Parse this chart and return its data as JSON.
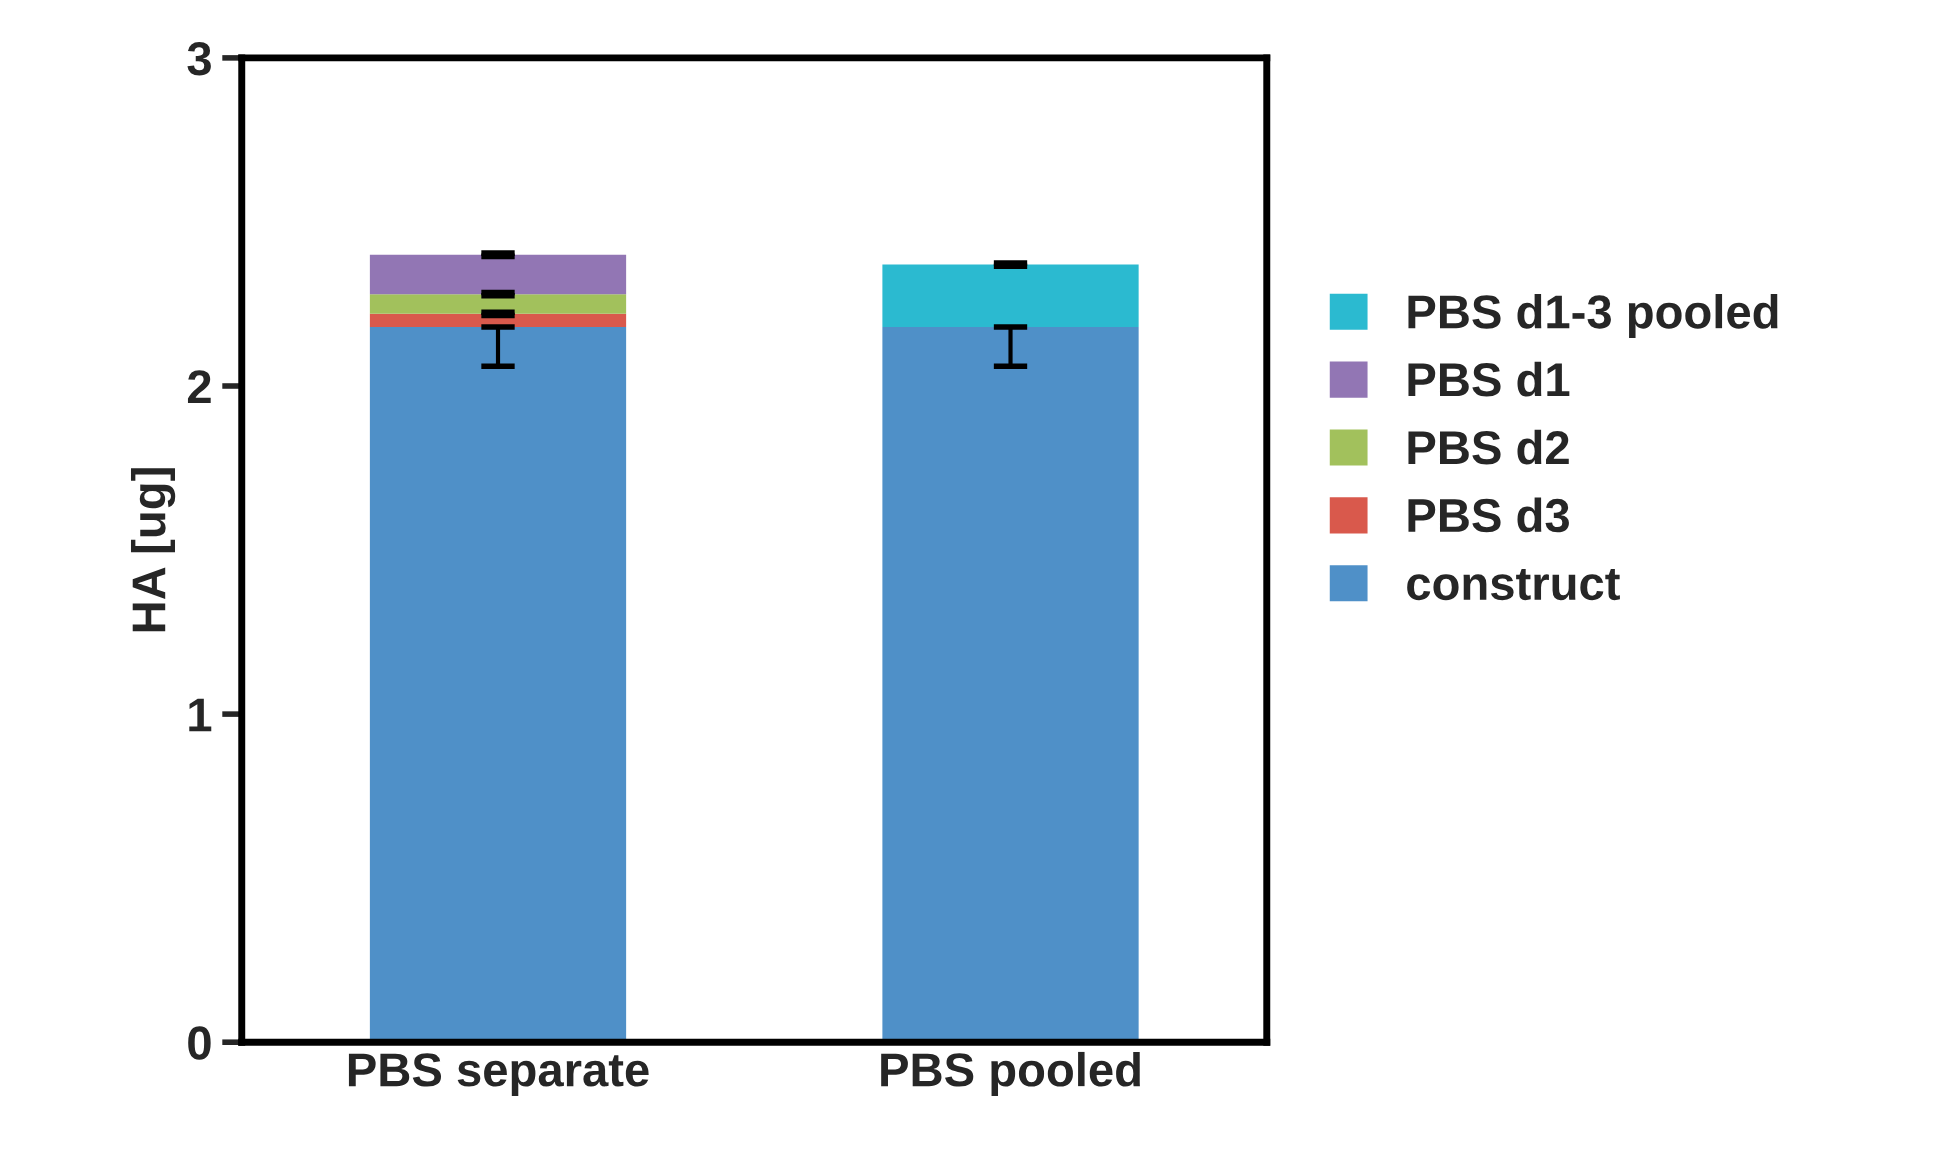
{
  "chart_data": {
    "type": "bar",
    "stacked": true,
    "ylabel": "HA [ug]",
    "categories": [
      "PBS separate",
      "PBS pooled"
    ],
    "series": [
      {
        "name": "construct",
        "color": "#4f90c8",
        "values": [
          2.18,
          2.18
        ],
        "errors": [
          [
            2.06,
            2.18
          ],
          [
            2.06,
            2.18
          ]
        ]
      },
      {
        "name": "PBS d3",
        "color": "#d9594c",
        "values": [
          0.04,
          null
        ],
        "errors": [
          0.005,
          null
        ]
      },
      {
        "name": "PBS d2",
        "color": "#a2c15c",
        "values": [
          0.06,
          null
        ],
        "errors": [
          0.005,
          null
        ]
      },
      {
        "name": "PBS d1",
        "color": "#9276b4",
        "values": [
          0.12,
          null
        ],
        "errors": [
          0.005,
          null
        ]
      },
      {
        "name": "PBS d1-3 pooled",
        "color": "#2bbad0",
        "values": [
          null,
          0.19
        ],
        "errors": [
          null,
          0.005
        ]
      }
    ],
    "ylim": [
      0,
      3
    ],
    "yticks": [
      0,
      1,
      2,
      3
    ],
    "grid": false,
    "legend": "right"
  }
}
